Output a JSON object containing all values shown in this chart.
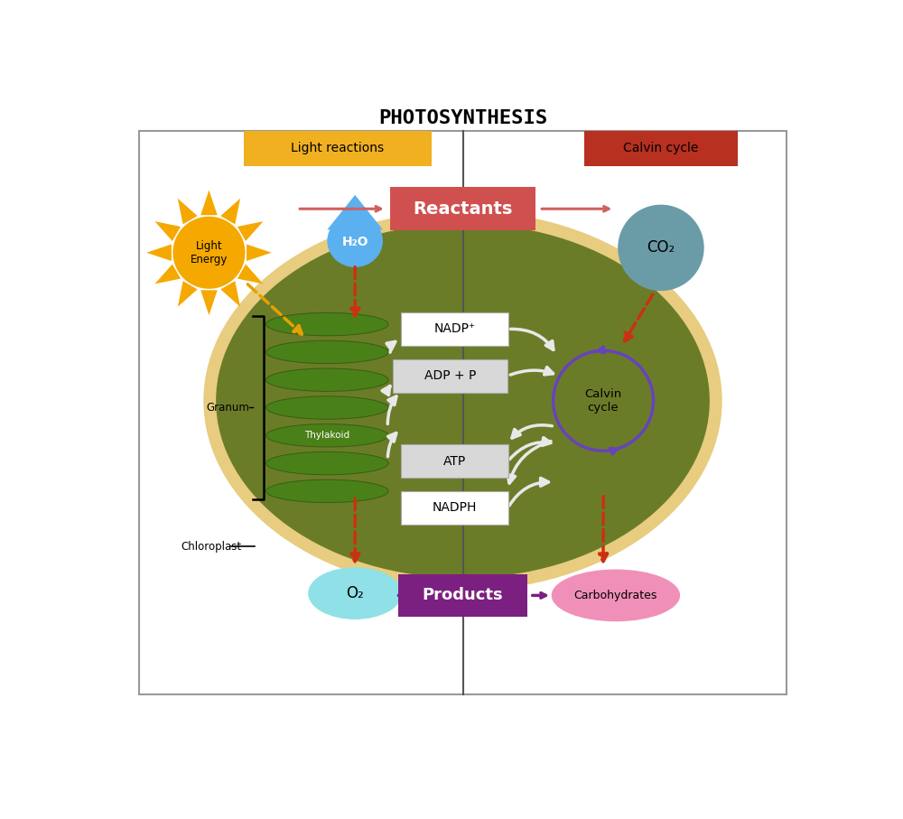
{
  "title": "PHOTOSYNTHESIS",
  "title_fontsize": 16,
  "title_font": "monospace",
  "bg_color": "#ffffff",
  "border_color": "#999999",
  "chloroplast_outer_color": "#e8cc80",
  "chloroplast_inner_color": "#6b7c28",
  "thylakoid_color": "#4a8018",
  "thylakoid_border": "#385e10",
  "sun_color": "#f5a800",
  "sun_text": "Light\nEnergy",
  "water_color": "#5bb0f0",
  "water_text": "H₂O",
  "co2_color": "#6a9ca8",
  "co2_text": "CO₂",
  "reactants_color": "#d05050",
  "reactants_text": "Reactants",
  "products_color": "#7b2080",
  "products_text": "Products",
  "light_reactions_color": "#f0b020",
  "light_reactions_text": "Light reactions",
  "calvin_label_color": "#b83020",
  "calvin_label_text": "Calvin cycle",
  "nadp_text": "NADP⁺",
  "adp_text": "ADP + P",
  "atp_text": "ATP",
  "nadph_text": "NADPH",
  "calvin_cycle_text": "Calvin\ncycle",
  "o2_color": "#90e0e8",
  "o2_text": "O₂",
  "carbo_color": "#f090b8",
  "carbo_text": "Carbohydrates",
  "granum_text": "Granum",
  "thylakoid_label": "Thylakoid",
  "chloroplast_text": "Chloroplast",
  "divider_color": "#555555",
  "arrow_red": "#cc3010",
  "arrow_white": "#e8e8e8",
  "arrow_orange": "#e8a000",
  "arrow_pink": "#d06060",
  "arrow_purple": "#7b2080",
  "calvin_circle_color": "#6644bb",
  "nadp_box_color": "#ffffff",
  "adp_box_color": "#d8d8d8",
  "atp_box_color": "#d8d8d8",
  "nadph_box_color": "#ffffff"
}
